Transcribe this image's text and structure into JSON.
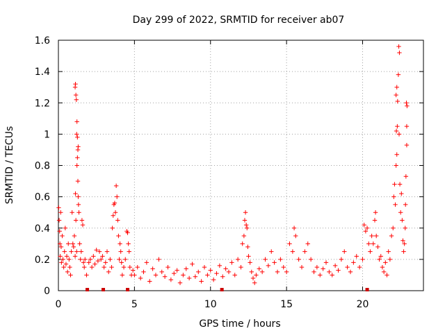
{
  "chart_data": {
    "type": "scatter",
    "title": "Day 299 of 2022, SRMTID for receiver ab07",
    "xlabel": "GPS time / hours",
    "ylabel": "SRMTID / TECUs",
    "xlim": [
      0,
      24
    ],
    "ylim": [
      0,
      1.6
    ],
    "xticks": [
      0,
      5,
      10,
      15,
      20
    ],
    "xtick_labels": [
      "0",
      "5",
      "10",
      "15",
      "20"
    ],
    "yticks": [
      0,
      0.2,
      0.4,
      0.6,
      0.8,
      1,
      1.2,
      1.4,
      1.6
    ],
    "ytick_labels": [
      "0",
      "0.2",
      "0.4",
      "0.6",
      "0.8",
      "1",
      "1.2",
      "1.4",
      "1.6"
    ],
    "grid": true,
    "marker": "plus",
    "color": "#ff0000",
    "gap_color": "#cc0000",
    "data_gaps_at_hours": [
      1.9,
      2.95,
      4.55,
      10.75,
      20.3
    ],
    "series": [
      {
        "name": "SRMTID",
        "points": [
          [
            0.02,
            0.53
          ],
          [
            0.05,
            0.45
          ],
          [
            0.08,
            0.38
          ],
          [
            0.1,
            0.3
          ],
          [
            0.12,
            0.22
          ],
          [
            0.15,
            0.5
          ],
          [
            0.18,
            0.28
          ],
          [
            0.2,
            0.18
          ],
          [
            0.25,
            0.35
          ],
          [
            0.3,
            0.2
          ],
          [
            0.35,
            0.15
          ],
          [
            0.4,
            0.25
          ],
          [
            0.45,
            0.4
          ],
          [
            0.5,
            0.17
          ],
          [
            0.55,
            0.22
          ],
          [
            0.6,
            0.12
          ],
          [
            0.65,
            0.3
          ],
          [
            0.7,
            0.2
          ],
          [
            0.75,
            0.15
          ],
          [
            0.8,
            0.1
          ],
          [
            0.85,
            0.25
          ],
          [
            0.9,
            0.5
          ],
          [
            0.95,
            0.3
          ],
          [
            1.0,
            0.28
          ],
          [
            1.05,
            0.35
          ],
          [
            1.1,
            0.22
          ],
          [
            1.15,
            0.45
          ],
          [
            1.2,
            0.25
          ],
          [
            1.1,
            1.3
          ],
          [
            1.12,
            1.32
          ],
          [
            1.15,
            1.25
          ],
          [
            1.18,
            1.22
          ],
          [
            1.2,
            1.0
          ],
          [
            1.22,
            1.08
          ],
          [
            1.25,
            0.98
          ],
          [
            1.22,
            0.8
          ],
          [
            1.25,
            0.85
          ],
          [
            1.28,
            0.7
          ],
          [
            1.3,
            0.6
          ],
          [
            1.32,
            0.55
          ],
          [
            1.35,
            0.5
          ],
          [
            1.3,
            0.92
          ],
          [
            1.28,
            0.9
          ],
          [
            1.12,
            0.62
          ],
          [
            1.4,
            0.3
          ],
          [
            1.45,
            0.2
          ],
          [
            1.5,
            0.25
          ],
          [
            1.55,
            0.45
          ],
          [
            1.6,
            0.42
          ],
          [
            1.65,
            0.18
          ],
          [
            1.7,
            0.15
          ],
          [
            1.75,
            0.2
          ],
          [
            1.85,
            0.1
          ],
          [
            2.0,
            0.18
          ],
          [
            2.1,
            0.2
          ],
          [
            2.2,
            0.15
          ],
          [
            2.3,
            0.22
          ],
          [
            2.4,
            0.17
          ],
          [
            2.5,
            0.26
          ],
          [
            2.6,
            0.19
          ],
          [
            2.7,
            0.25
          ],
          [
            2.8,
            0.2
          ],
          [
            2.9,
            0.22
          ],
          [
            3.0,
            0.15
          ],
          [
            3.1,
            0.18
          ],
          [
            3.2,
            0.25
          ],
          [
            3.3,
            0.12
          ],
          [
            3.4,
            0.2
          ],
          [
            3.5,
            0.15
          ],
          [
            3.55,
            0.4
          ],
          [
            3.6,
            0.48
          ],
          [
            3.65,
            0.55
          ],
          [
            3.7,
            0.56
          ],
          [
            3.75,
            0.5
          ],
          [
            3.8,
            0.67
          ],
          [
            3.85,
            0.6
          ],
          [
            3.9,
            0.45
          ],
          [
            3.95,
            0.35
          ],
          [
            4.0,
            0.2
          ],
          [
            4.05,
            0.3
          ],
          [
            4.1,
            0.25
          ],
          [
            4.15,
            0.18
          ],
          [
            4.2,
            0.1
          ],
          [
            4.3,
            0.15
          ],
          [
            4.4,
            0.2
          ],
          [
            4.5,
            0.38
          ],
          [
            4.55,
            0.37
          ],
          [
            4.6,
            0.3
          ],
          [
            4.65,
            0.25
          ],
          [
            4.7,
            0.15
          ],
          [
            4.8,
            0.1
          ],
          [
            4.9,
            0.13
          ],
          [
            5.0,
            0.1
          ],
          [
            5.2,
            0.15
          ],
          [
            5.4,
            0.08
          ],
          [
            5.6,
            0.12
          ],
          [
            5.8,
            0.18
          ],
          [
            6.0,
            0.06
          ],
          [
            6.2,
            0.14
          ],
          [
            6.4,
            0.1
          ],
          [
            6.6,
            0.2
          ],
          [
            6.8,
            0.12
          ],
          [
            7.0,
            0.09
          ],
          [
            7.2,
            0.15
          ],
          [
            7.4,
            0.07
          ],
          [
            7.6,
            0.11
          ],
          [
            7.8,
            0.13
          ],
          [
            8.0,
            0.05
          ],
          [
            8.2,
            0.1
          ],
          [
            8.4,
            0.14
          ],
          [
            8.6,
            0.08
          ],
          [
            8.8,
            0.17
          ],
          [
            9.0,
            0.09
          ],
          [
            9.2,
            0.12
          ],
          [
            9.4,
            0.06
          ],
          [
            9.6,
            0.15
          ],
          [
            9.8,
            0.1
          ],
          [
            10.0,
            0.13
          ],
          [
            10.2,
            0.07
          ],
          [
            10.4,
            0.11
          ],
          [
            10.6,
            0.16
          ],
          [
            10.8,
            0.09
          ],
          [
            11.0,
            0.14
          ],
          [
            11.2,
            0.12
          ],
          [
            11.4,
            0.18
          ],
          [
            11.6,
            0.1
          ],
          [
            11.8,
            0.2
          ],
          [
            12.0,
            0.15
          ],
          [
            12.1,
            0.3
          ],
          [
            12.2,
            0.35
          ],
          [
            12.25,
            0.45
          ],
          [
            12.3,
            0.5
          ],
          [
            12.35,
            0.42
          ],
          [
            12.4,
            0.4
          ],
          [
            12.45,
            0.28
          ],
          [
            12.5,
            0.22
          ],
          [
            12.6,
            0.18
          ],
          [
            12.7,
            0.12
          ],
          [
            12.8,
            0.08
          ],
          [
            12.9,
            0.05
          ],
          [
            13.0,
            0.1
          ],
          [
            13.2,
            0.14
          ],
          [
            13.4,
            0.12
          ],
          [
            13.6,
            0.2
          ],
          [
            13.8,
            0.16
          ],
          [
            14.0,
            0.25
          ],
          [
            14.2,
            0.18
          ],
          [
            14.4,
            0.12
          ],
          [
            14.6,
            0.2
          ],
          [
            14.8,
            0.15
          ],
          [
            15.0,
            0.12
          ],
          [
            15.2,
            0.3
          ],
          [
            15.4,
            0.25
          ],
          [
            15.5,
            0.4
          ],
          [
            15.6,
            0.35
          ],
          [
            15.8,
            0.2
          ],
          [
            16.0,
            0.15
          ],
          [
            16.2,
            0.25
          ],
          [
            16.4,
            0.3
          ],
          [
            16.6,
            0.2
          ],
          [
            16.8,
            0.12
          ],
          [
            17.0,
            0.15
          ],
          [
            17.2,
            0.1
          ],
          [
            17.4,
            0.14
          ],
          [
            17.6,
            0.18
          ],
          [
            17.8,
            0.12
          ],
          [
            18.0,
            0.1
          ],
          [
            18.2,
            0.16
          ],
          [
            18.4,
            0.13
          ],
          [
            18.6,
            0.2
          ],
          [
            18.8,
            0.25
          ],
          [
            19.0,
            0.15
          ],
          [
            19.2,
            0.12
          ],
          [
            19.4,
            0.18
          ],
          [
            19.6,
            0.22
          ],
          [
            19.8,
            0.15
          ],
          [
            20.0,
            0.2
          ],
          [
            20.1,
            0.42
          ],
          [
            20.2,
            0.38
          ],
          [
            20.3,
            0.4
          ],
          [
            20.4,
            0.3
          ],
          [
            20.5,
            0.25
          ],
          [
            20.6,
            0.35
          ],
          [
            20.7,
            0.3
          ],
          [
            20.8,
            0.45
          ],
          [
            20.85,
            0.5
          ],
          [
            20.9,
            0.35
          ],
          [
            21.0,
            0.28
          ],
          [
            21.1,
            0.2
          ],
          [
            21.2,
            0.22
          ],
          [
            21.3,
            0.15
          ],
          [
            21.4,
            0.12
          ],
          [
            21.5,
            0.18
          ],
          [
            21.6,
            0.1
          ],
          [
            21.7,
            0.25
          ],
          [
            21.8,
            0.2
          ],
          [
            21.9,
            0.35
          ],
          [
            22.0,
            0.4
          ],
          [
            22.05,
            0.6
          ],
          [
            22.1,
            0.68
          ],
          [
            22.15,
            0.55
          ],
          [
            22.2,
            0.8
          ],
          [
            22.25,
            0.87
          ],
          [
            22.22,
            1.02
          ],
          [
            22.28,
            1.05
          ],
          [
            22.2,
            1.25
          ],
          [
            22.25,
            1.3
          ],
          [
            22.3,
            1.21
          ],
          [
            22.35,
            1.38
          ],
          [
            22.38,
            1.56
          ],
          [
            22.42,
            1.52
          ],
          [
            22.4,
            1.0
          ],
          [
            22.45,
            0.68
          ],
          [
            22.5,
            0.5
          ],
          [
            22.55,
            0.62
          ],
          [
            22.6,
            0.45
          ],
          [
            22.65,
            0.32
          ],
          [
            22.7,
            0.25
          ],
          [
            22.75,
            0.3
          ],
          [
            22.8,
            0.4
          ],
          [
            22.82,
            0.55
          ],
          [
            22.85,
            0.73
          ],
          [
            22.9,
            1.05
          ],
          [
            22.88,
            1.2
          ],
          [
            22.92,
            1.18
          ],
          [
            22.9,
            0.93
          ]
        ]
      }
    ]
  }
}
